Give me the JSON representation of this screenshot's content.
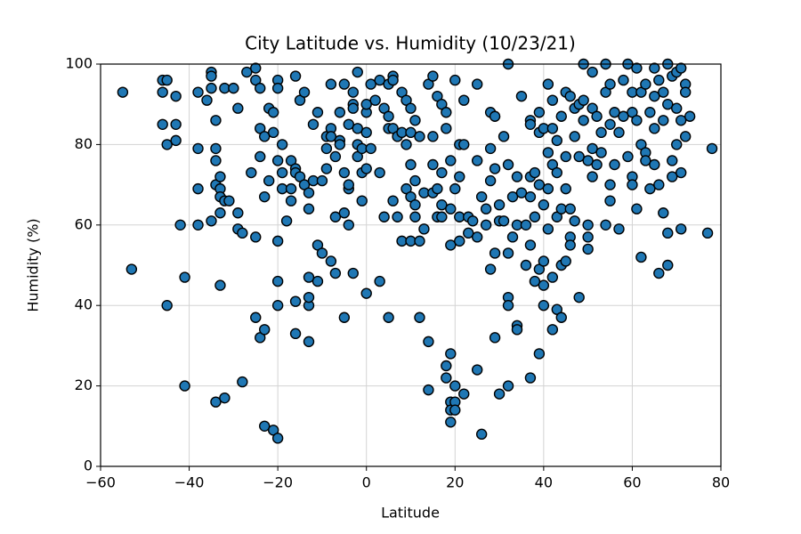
{
  "chart_data": {
    "type": "scatter",
    "title": "City Latitude vs. Humidity (10/23/21)",
    "x_label": "Latitude",
    "y_label": "Humidity (%)",
    "color": "#1f77b4",
    "edge_color": "#000000",
    "grid": true,
    "xlim": [
      -60,
      80
    ],
    "ylim": [
      0,
      100
    ],
    "xticks": [
      {
        "value": -60,
        "label": "−60"
      },
      {
        "value": -40,
        "label": "−40"
      },
      {
        "value": -20,
        "label": "−20"
      },
      0,
      20,
      40,
      60,
      80
    ],
    "yticks": [
      0,
      20,
      40,
      60,
      80,
      100
    ],
    "x": [
      -55,
      -53,
      -46,
      -45,
      -46,
      -46,
      -45,
      -45,
      -43,
      -43,
      -43,
      -42,
      -41,
      -41,
      -38,
      -38,
      -38,
      -38,
      -36,
      -35,
      -35,
      -35,
      -34,
      -34,
      -34,
      -34,
      -33,
      -33,
      -33,
      -33,
      -35,
      -34,
      -32,
      -33,
      -32,
      -31,
      -32,
      -30,
      -29,
      -29,
      -29,
      -28,
      -28,
      -27,
      -25,
      -26,
      -25,
      -24,
      -25,
      -25,
      -24,
      -24,
      -23,
      -23,
      -24,
      -23,
      -23,
      -22,
      -22,
      -21,
      -21,
      -21,
      -20,
      -20,
      -20,
      -20,
      -20,
      -20,
      -20,
      -19,
      -19,
      -19,
      -18,
      -17,
      -17,
      -17,
      -16,
      -16,
      -16,
      -16,
      -16,
      -15,
      -15,
      -14,
      -14,
      -13,
      -13,
      -13,
      -13,
      -13,
      -13,
      -12,
      -12,
      -11,
      -11,
      -11,
      -10,
      -10,
      -9,
      -9,
      -9,
      -8,
      -8,
      -8,
      -8,
      -7,
      -7,
      -7,
      -6,
      -6,
      -6,
      -5,
      -5,
      -5,
      -5,
      -4,
      -4,
      -4,
      -4,
      -3,
      -3,
      -3,
      -3,
      -2,
      -2,
      -2,
      -2,
      -1,
      -1,
      -1,
      0,
      0,
      0,
      0,
      0,
      1,
      1,
      2,
      3,
      3,
      3,
      4,
      4,
      5,
      5,
      5,
      5,
      6,
      6,
      6,
      6,
      7,
      7,
      8,
      8,
      8,
      9,
      9,
      9,
      10,
      10,
      10,
      10,
      10,
      11,
      11,
      11,
      11,
      12,
      12,
      12,
      13,
      13,
      14,
      14,
      14,
      15,
      15,
      15,
      15,
      16,
      16,
      16,
      17,
      17,
      17,
      17,
      18,
      18,
      18,
      18,
      19,
      19,
      19,
      19,
      19,
      19,
      19,
      20,
      20,
      20,
      20,
      20,
      21,
      21,
      21,
      21,
      22,
      22,
      22,
      23,
      23,
      24,
      25,
      25,
      25,
      25,
      26,
      26,
      27,
      27,
      28,
      28,
      28,
      28,
      29,
      29,
      29,
      29,
      30,
      30,
      30,
      31,
      31,
      32,
      32,
      32,
      32,
      32,
      32,
      33,
      33,
      34,
      34,
      34,
      34,
      35,
      35,
      36,
      36,
      37,
      37,
      37,
      37,
      37,
      37,
      38,
      38,
      38,
      39,
      39,
      39,
      39,
      39,
      40,
      40,
      40,
      40,
      40,
      41,
      41,
      41,
      41,
      42,
      42,
      42,
      42,
      42,
      43,
      43,
      43,
      43,
      44,
      44,
      44,
      44,
      45,
      45,
      45,
      45,
      46,
      46,
      46,
      46,
      47,
      47,
      47,
      48,
      48,
      48,
      49,
      49,
      49,
      50,
      50,
      50,
      50,
      51,
      51,
      51,
      51,
      52,
      52,
      53,
      53,
      54,
      54,
      54,
      55,
      55,
      55,
      55,
      56,
      56,
      57,
      57,
      58,
      58,
      59,
      59,
      60,
      60,
      60,
      60,
      61,
      61,
      61,
      62,
      62,
      62,
      63,
      63,
      63,
      64,
      64,
      65,
      65,
      65,
      65,
      66,
      66,
      66,
      67,
      67,
      67,
      68,
      68,
      68,
      68,
      69,
      69,
      69,
      70,
      70,
      70,
      71,
      71,
      71,
      71,
      72,
      72,
      72,
      73,
      77,
      78
    ],
    "values": [
      93,
      49,
      96,
      96,
      93,
      85,
      80,
      40,
      85,
      81,
      92,
      60,
      47,
      20,
      93,
      79,
      69,
      60,
      91,
      98,
      97,
      94,
      86,
      79,
      76,
      70,
      72,
      69,
      67,
      63,
      61,
      16,
      17,
      45,
      66,
      66,
      94,
      94,
      89,
      63,
      59,
      58,
      21,
      98,
      99,
      73,
      96,
      94,
      57,
      37,
      77,
      84,
      67,
      82,
      32,
      34,
      10,
      89,
      71,
      83,
      88,
      9,
      7,
      96,
      94,
      76,
      56,
      46,
      40,
      80,
      69,
      73,
      61,
      76,
      69,
      66,
      97,
      74,
      73,
      41,
      33,
      91,
      72,
      93,
      70,
      68,
      64,
      40,
      42,
      47,
      31,
      85,
      71,
      88,
      55,
      46,
      71,
      53,
      74,
      79,
      82,
      95,
      84,
      82,
      51,
      77,
      62,
      48,
      88,
      81,
      80,
      37,
      95,
      73,
      63,
      85,
      69,
      70,
      60,
      93,
      90,
      89,
      48,
      98,
      84,
      80,
      77,
      79,
      73,
      66,
      88,
      90,
      83,
      74,
      43,
      95,
      79,
      91,
      96,
      73,
      46,
      89,
      62,
      37,
      87,
      84,
      95,
      97,
      96,
      84,
      66,
      82,
      62,
      93,
      83,
      56,
      91,
      80,
      69,
      56,
      75,
      89,
      67,
      83,
      86,
      71,
      65,
      62,
      82,
      56,
      37,
      68,
      59,
      95,
      19,
      31,
      97,
      75,
      68,
      82,
      92,
      69,
      62,
      90,
      73,
      65,
      62,
      84,
      88,
      25,
      22,
      28,
      16,
      14,
      11,
      55,
      64,
      76,
      96,
      20,
      16,
      14,
      69,
      80,
      72,
      62,
      56,
      91,
      80,
      18,
      62,
      58,
      61,
      95,
      76,
      24,
      57,
      67,
      8,
      64,
      60,
      88,
      79,
      71,
      49,
      87,
      74,
      53,
      32,
      65,
      61,
      18,
      82,
      61,
      75,
      100,
      42,
      40,
      53,
      20,
      57,
      67,
      72,
      35,
      34,
      60,
      92,
      68,
      60,
      50,
      86,
      85,
      72,
      67,
      55,
      22,
      62,
      46,
      73,
      88,
      83,
      70,
      49,
      28,
      84,
      65,
      51,
      45,
      40,
      95,
      78,
      69,
      59,
      91,
      84,
      75,
      47,
      34,
      81,
      73,
      62,
      39,
      87,
      64,
      50,
      37,
      93,
      77,
      69,
      51,
      92,
      64,
      57,
      55,
      89,
      82,
      61,
      90,
      77,
      42,
      100,
      91,
      86,
      57,
      54,
      60,
      76,
      98,
      89,
      79,
      72,
      87,
      75,
      83,
      78,
      100,
      93,
      60,
      95,
      85,
      70,
      66,
      88,
      75,
      83,
      59,
      96,
      87,
      100,
      77,
      93,
      88,
      72,
      70,
      64,
      99,
      86,
      93,
      80,
      52,
      95,
      78,
      76,
      69,
      88,
      99,
      92,
      84,
      75,
      96,
      70,
      48,
      93,
      86,
      63,
      58,
      100,
      90,
      50,
      97,
      76,
      72,
      98,
      89,
      80,
      99,
      86,
      73,
      59,
      95,
      93,
      82,
      87,
      58,
      79
    ]
  }
}
